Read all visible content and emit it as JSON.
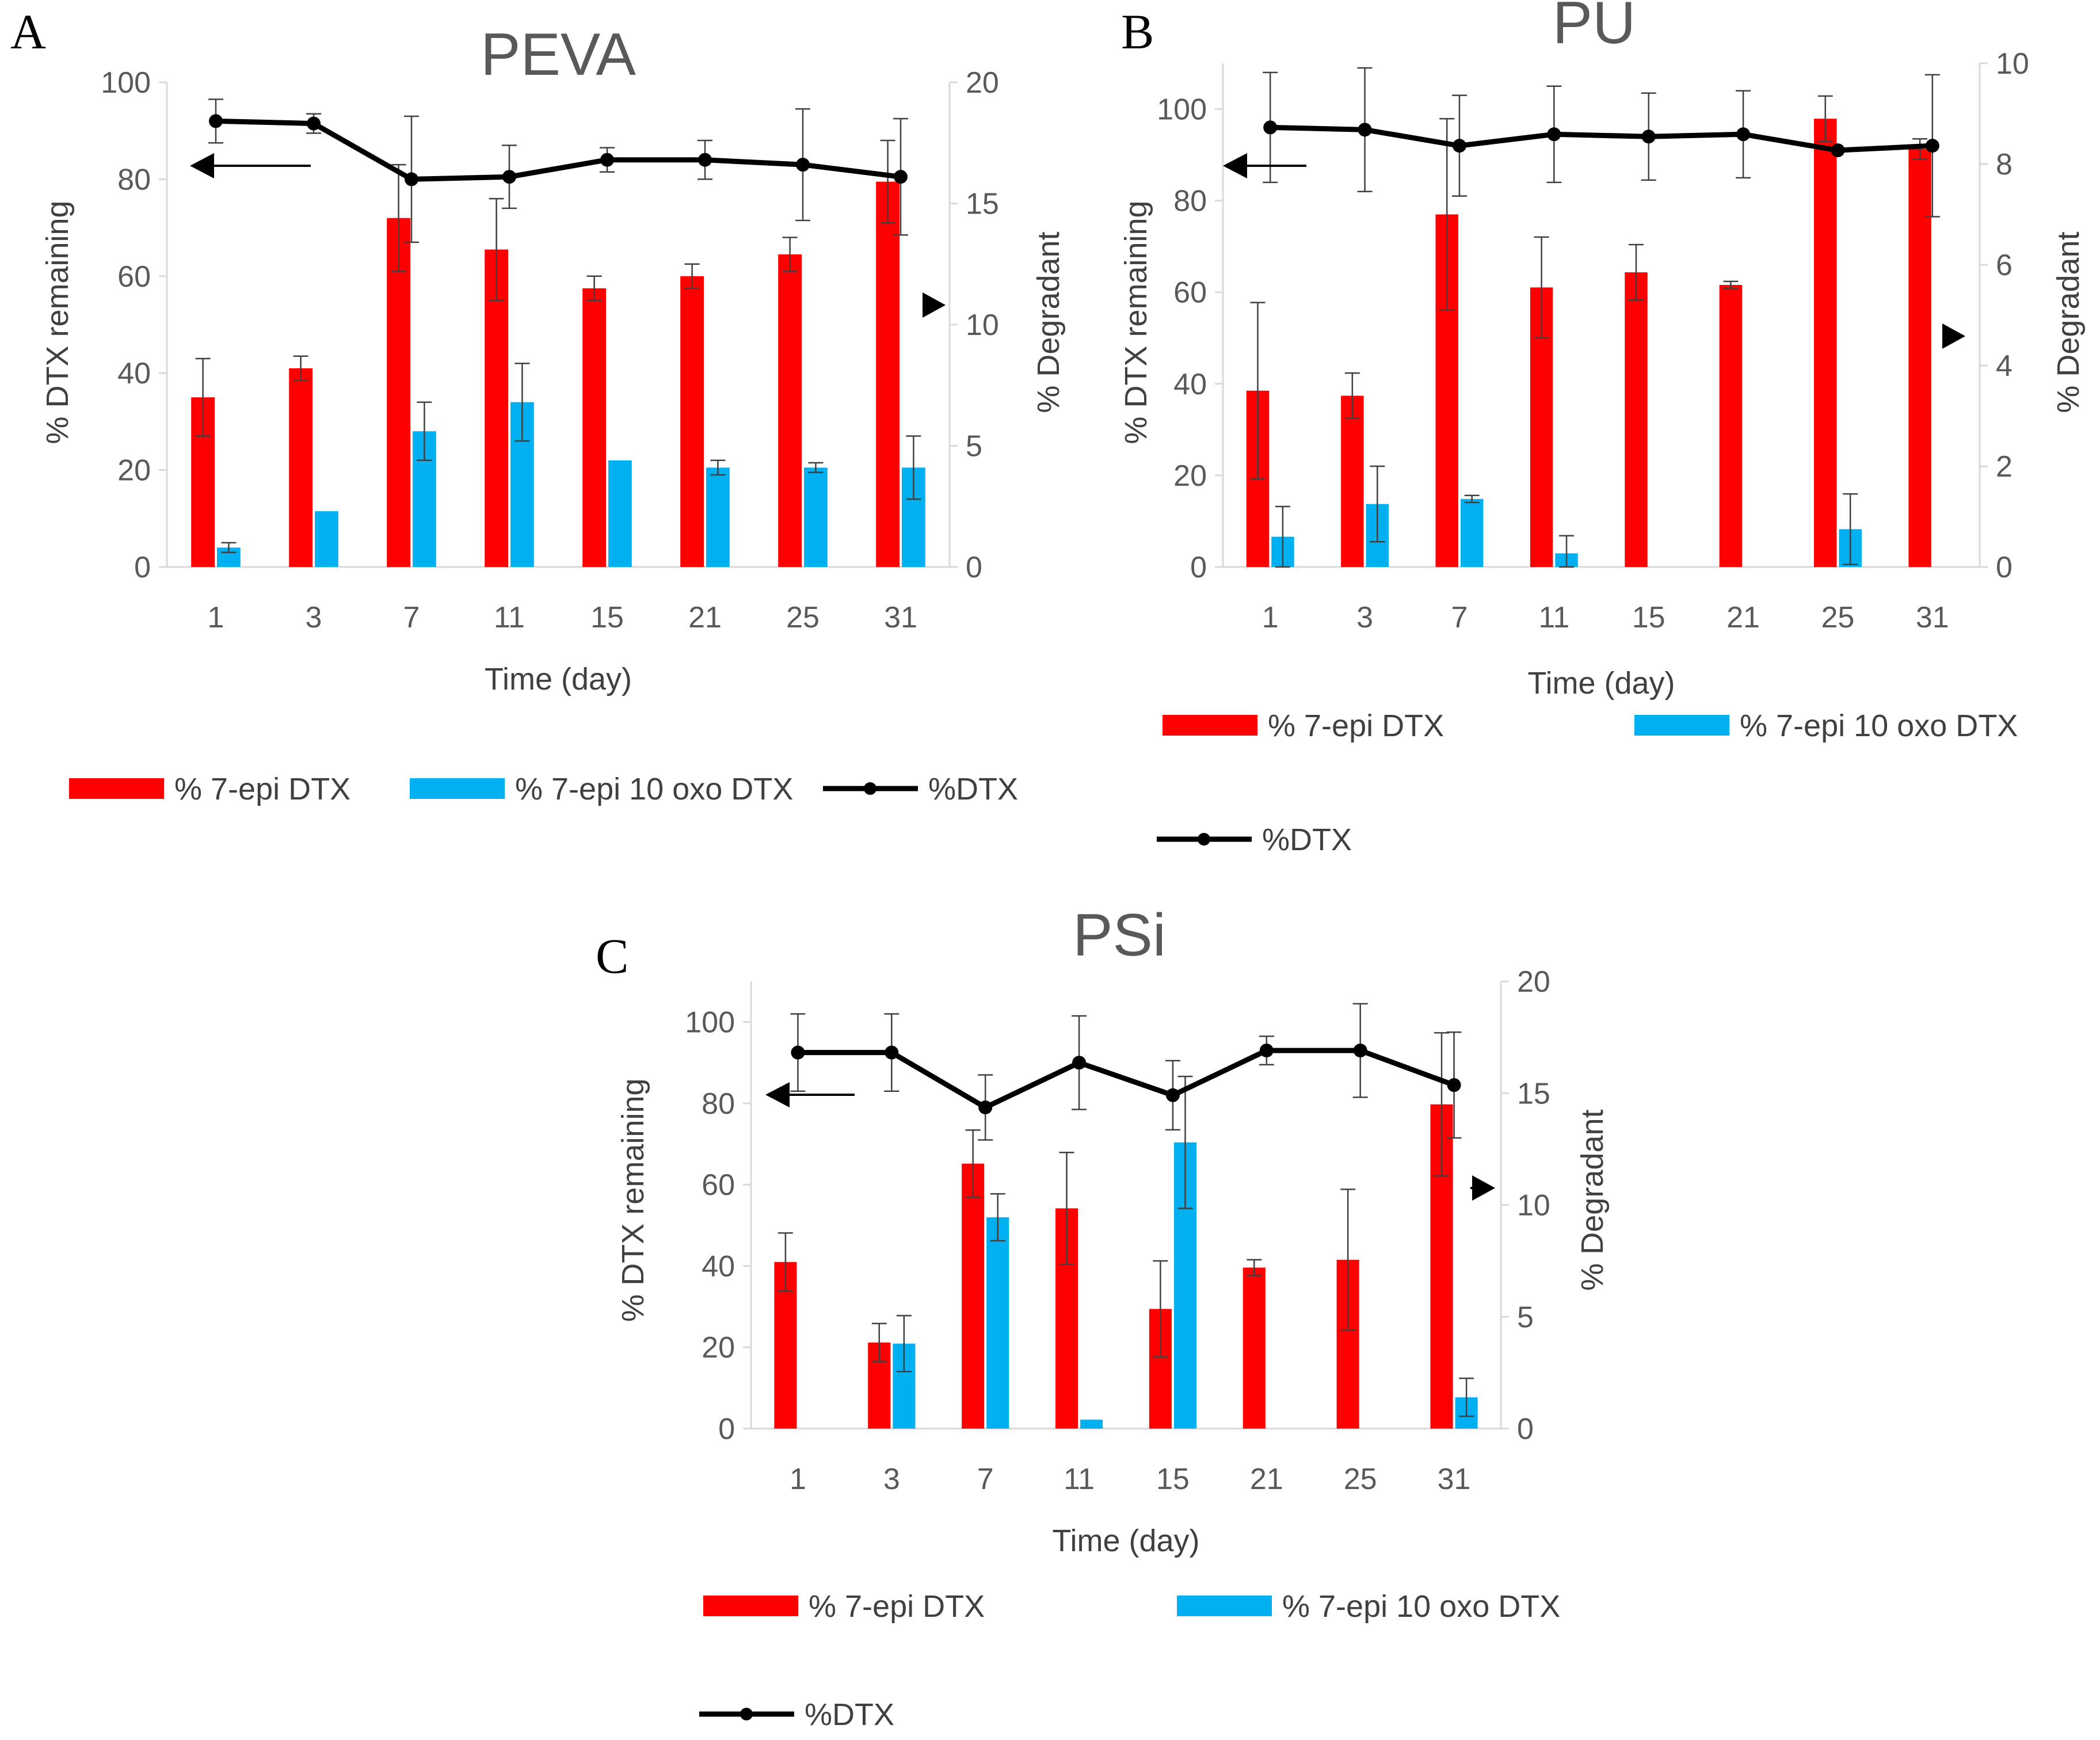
{
  "chart_data": [
    {
      "panel": "A",
      "type": "bar",
      "title": "PEVA",
      "xlabel": "Time (day)",
      "ylabel": "% DTX remaining",
      "y2label": "% Degradant",
      "categories": [
        "1",
        "3",
        "7",
        "11",
        "15",
        "21",
        "25",
        "31"
      ],
      "ylim": [
        0,
        100
      ],
      "yticks": [
        "0",
        "20",
        "40",
        "60",
        "80",
        "100"
      ],
      "y2lim": [
        0,
        20
      ],
      "y2ticks": [
        "0",
        "5",
        "10",
        "15",
        "20"
      ],
      "series": [
        {
          "name": "% 7-epi DTX",
          "axis": "y2",
          "color": "#ff0000",
          "values": [
            7.0,
            8.2,
            14.4,
            13.1,
            11.5,
            12.0,
            12.9,
            15.9
          ],
          "errors": [
            1.6,
            0.5,
            2.2,
            2.1,
            0.5,
            0.5,
            0.7,
            1.7
          ]
        },
        {
          "name": "% 7-epi 10 oxo DTX",
          "axis": "y2",
          "color": "#00b0f0",
          "values": [
            0.8,
            2.3,
            5.6,
            6.8,
            4.4,
            4.1,
            4.1,
            4.1
          ],
          "errors": [
            0.2,
            0.0,
            1.2,
            1.6,
            0.0,
            0.3,
            0.2,
            1.3
          ]
        },
        {
          "name": "%DTX",
          "axis": "y",
          "type": "line",
          "color": "#000000",
          "values": [
            92,
            91.5,
            80,
            80.5,
            84,
            84,
            83,
            80.5
          ],
          "errors": [
            4.5,
            2,
            13,
            6.5,
            2.5,
            4,
            11.5,
            12
          ]
        }
      ],
      "legend_position": "bottom"
    },
    {
      "panel": "B",
      "type": "bar",
      "title": "PU",
      "xlabel": "Time (day)",
      "ylabel": "% DTX remaining",
      "y2label": "% Degradant",
      "categories": [
        "1",
        "3",
        "7",
        "11",
        "15",
        "21",
        "25",
        "31"
      ],
      "ylim": [
        0,
        110
      ],
      "yticks": [
        "0",
        "20",
        "40",
        "60",
        "80",
        "100"
      ],
      "y2lim": [
        0,
        10
      ],
      "y2ticks": [
        "0",
        "2",
        "4",
        "6",
        "8",
        "10"
      ],
      "series": [
        {
          "name": "% 7-epi DTX",
          "axis": "y2",
          "color": "#ff0000",
          "values": [
            3.5,
            3.4,
            7.0,
            5.55,
            5.85,
            5.6,
            8.9,
            8.3
          ],
          "errors": [
            1.75,
            0.45,
            1.9,
            1.0,
            0.55,
            0.07,
            0.45,
            0.2
          ]
        },
        {
          "name": "% 7-epi 10 oxo DTX",
          "axis": "y2",
          "color": "#00b0f0",
          "values": [
            0.6,
            1.25,
            1.35,
            0.27,
            0,
            0,
            0.75,
            0
          ],
          "errors": [
            0.6,
            0.75,
            0.07,
            0.35,
            0,
            0,
            0.7,
            0
          ]
        },
        {
          "name": "%DTX",
          "axis": "y",
          "type": "line",
          "color": "#000000",
          "values": [
            96,
            95.5,
            92,
            94.5,
            94,
            94.5,
            91,
            92
          ],
          "errors": [
            12,
            13.5,
            11,
            10.5,
            9.5,
            9.5,
            0,
            15.5
          ]
        }
      ],
      "legend_position": "bottom"
    },
    {
      "panel": "C",
      "type": "bar",
      "title": "PSi",
      "xlabel": "Time (day)",
      "ylabel": "% DTX remaining",
      "y2label": "% Degradant",
      "categories": [
        "1",
        "3",
        "7",
        "11",
        "15",
        "21",
        "25",
        "31"
      ],
      "ylim": [
        0,
        110
      ],
      "yticks": [
        "0",
        "20",
        "40",
        "60",
        "80",
        "100"
      ],
      "y2lim": [
        0,
        20
      ],
      "y2ticks": [
        "0",
        "5",
        "10",
        "15",
        "20"
      ],
      "series": [
        {
          "name": "% 7-epi DTX",
          "axis": "y2",
          "color": "#ff0000",
          "values": [
            7.45,
            3.85,
            11.85,
            9.85,
            5.35,
            7.2,
            7.55,
            14.5
          ],
          "errors": [
            1.3,
            0.85,
            1.5,
            2.5,
            2.15,
            0.35,
            3.15,
            3.2
          ]
        },
        {
          "name": "% 7-epi 10 oxo DTX",
          "axis": "y2",
          "color": "#00b0f0",
          "values": [
            0,
            3.8,
            9.45,
            0.4,
            12.8,
            0,
            0,
            1.4
          ],
          "errors": [
            0,
            1.25,
            1.05,
            0,
            2.95,
            0,
            0,
            0.85
          ]
        },
        {
          "name": "%DTX",
          "axis": "y",
          "type": "line",
          "color": "#000000",
          "values": [
            92.5,
            92.5,
            79,
            90,
            82,
            93,
            93,
            84.5
          ],
          "errors": [
            9.5,
            9.5,
            8,
            11.5,
            8.5,
            3.5,
            11.5,
            13
          ]
        }
      ],
      "legend_position": "bottom"
    }
  ]
}
